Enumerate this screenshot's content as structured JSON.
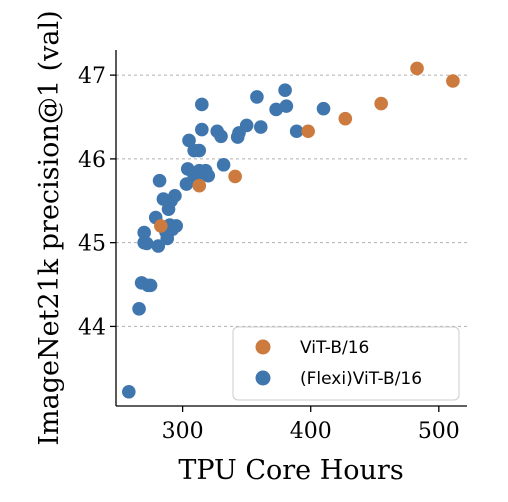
{
  "chart_data": {
    "type": "scatter",
    "title": "",
    "xlabel": "TPU Core Hours",
    "ylabel": "ImageNet21k precision@1 (val)",
    "xlim": [
      248,
      522
    ],
    "ylim": [
      43.05,
      47.3
    ],
    "xticks": [
      300,
      400,
      500
    ],
    "yticks": [
      44,
      45,
      46,
      47
    ],
    "grid": "horizontal dashed",
    "legend_position": "bottom-right",
    "series": [
      {
        "name": "ViT-B/16",
        "color": "#cc7a3e",
        "x": [
          283,
          313,
          341,
          398,
          427,
          455,
          483,
          511
        ],
        "y": [
          45.2,
          45.68,
          45.79,
          46.33,
          46.48,
          46.66,
          47.08,
          46.93
        ]
      },
      {
        "name": "(Flexi)ViT-B/16",
        "color": "#3f76ad",
        "x": [
          258,
          266,
          268,
          270,
          270,
          272,
          273,
          275,
          279,
          281,
          282,
          285,
          287,
          288,
          289,
          290,
          291,
          292,
          294,
          295,
          303,
          304,
          305,
          309,
          309,
          313,
          313,
          315,
          315,
          316,
          318,
          320,
          327,
          330,
          332,
          343,
          344,
          350,
          358,
          361,
          373,
          380,
          381,
          389,
          410
        ],
        "y": [
          43.22,
          44.21,
          44.52,
          45.0,
          45.12,
          44.99,
          44.49,
          44.49,
          45.3,
          44.96,
          45.74,
          45.52,
          45.13,
          45.05,
          45.4,
          45.21,
          45.5,
          45.16,
          45.56,
          45.2,
          45.7,
          45.88,
          46.22,
          45.8,
          46.1,
          45.86,
          46.1,
          46.65,
          46.35,
          45.82,
          45.86,
          45.8,
          46.33,
          46.27,
          45.93,
          46.26,
          46.31,
          46.4,
          46.74,
          46.38,
          46.59,
          46.82,
          46.63,
          46.33,
          46.6
        ]
      }
    ]
  }
}
